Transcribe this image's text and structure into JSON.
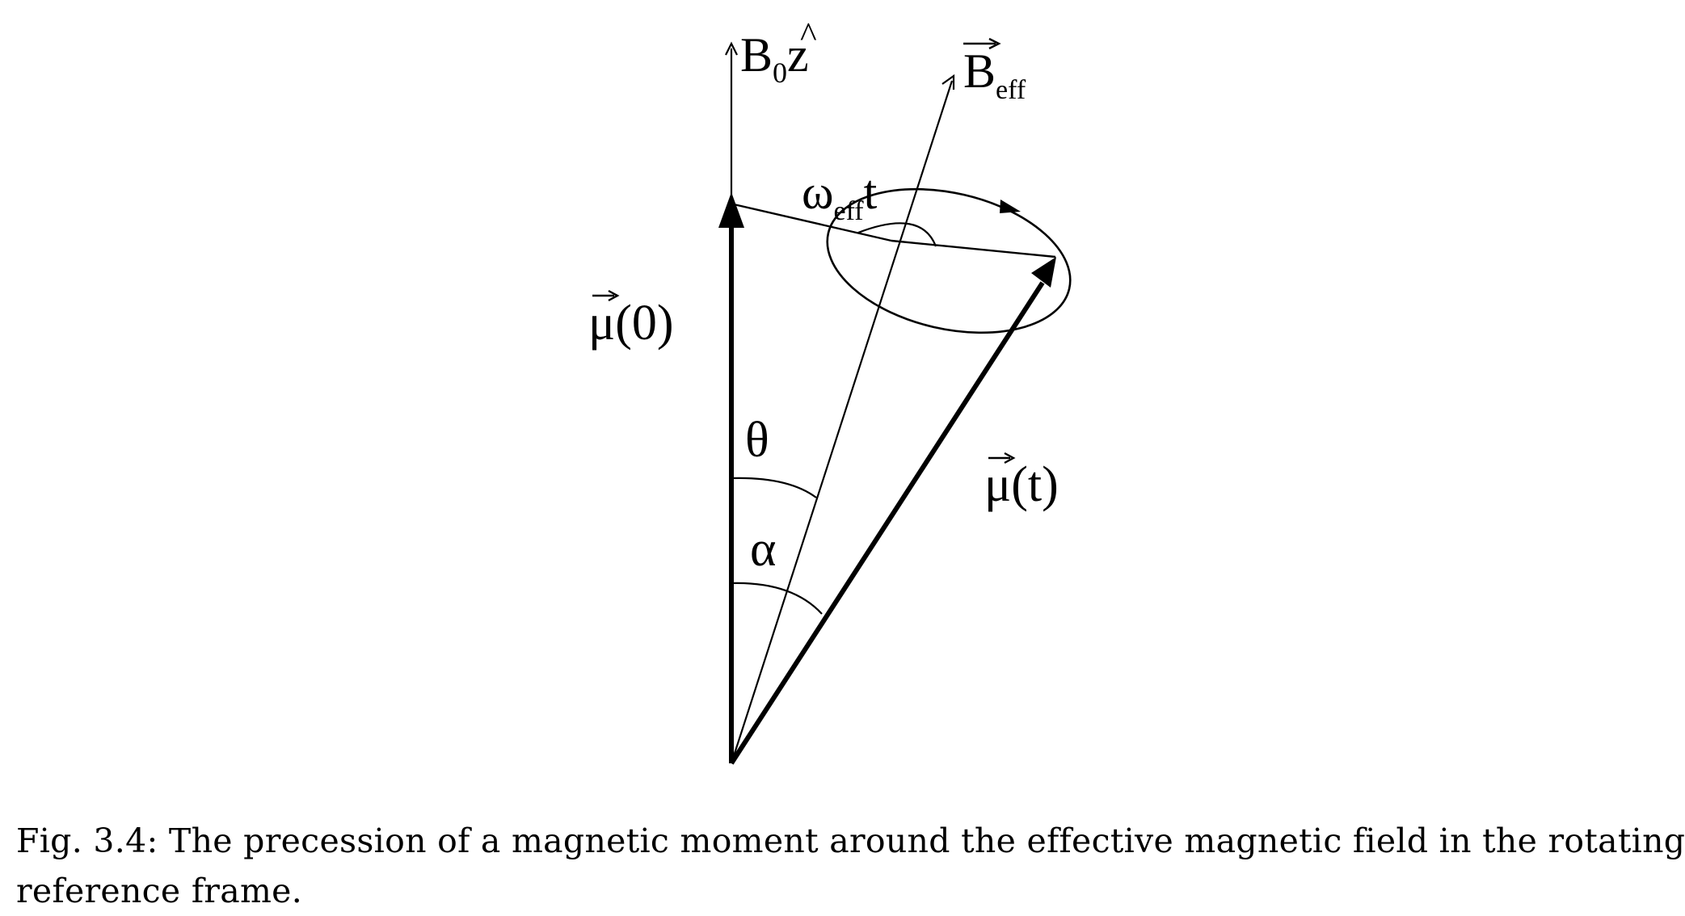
{
  "diagram": {
    "labels": {
      "b0z_base": "B",
      "b0z_sub": "0",
      "b0z_z": "z",
      "b0z_hat": "^",
      "beff_base": "B",
      "beff_sub": "eff",
      "omega_base": "ω",
      "omega_sub": "eff",
      "omega_t": "t",
      "mu0_symbol": "μ",
      "mu0_arg": "(0)",
      "mut_symbol": "μ",
      "mut_arg": "(t)",
      "theta": "θ",
      "alpha": "α"
    }
  },
  "caption": {
    "line1": "Fig. 3.4: The precession of a magnetic moment around the effective magnetic field in the rotating",
    "line2": "reference frame."
  }
}
